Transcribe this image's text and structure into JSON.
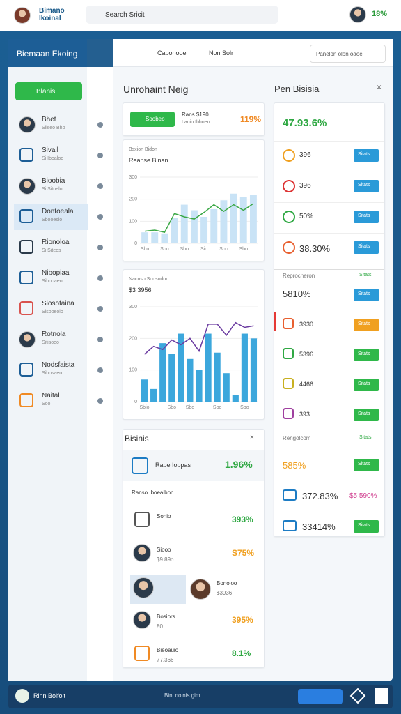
{
  "header": {
    "brand": "Bimano Ikoinal",
    "search": "Search Sricit",
    "stat": "18%"
  },
  "panel": {
    "title": "Biemaan Ekoing",
    "tabs": [
      "Caponooe",
      "Non Solr"
    ],
    "dropdown": "Panelon olon oaoe"
  },
  "sidebar": {
    "button": "Blanis",
    "items": [
      {
        "name": "Bhet",
        "sub": "Sliseo Bho"
      },
      {
        "name": "Sivail",
        "sub": "Si Iboaloo"
      },
      {
        "name": "Bioobia",
        "sub": "Si Sitoelo"
      },
      {
        "name": "Dontoeala",
        "sub": "Sbooeslo"
      },
      {
        "name": "Rionoloa",
        "sub": "Si Siteos"
      },
      {
        "name": "Nibopiaa",
        "sub": "Sibooaeo"
      },
      {
        "name": "Siosofaina",
        "sub": "Sisooeolo"
      },
      {
        "name": "Rotnola",
        "sub": "Sitisoeo"
      },
      {
        "name": "Nodsfaista",
        "sub": "Sibosaeo"
      },
      {
        "name": "Naital",
        "sub": "Soo"
      }
    ]
  },
  "center": {
    "title": "Unrohaint Neig",
    "summary": {
      "button": "Soobeo",
      "line1": "Rans $190",
      "line2": "Lanio Ibhoen",
      "stat": "119%"
    },
    "bottom": {
      "title": "Bisinis",
      "head": "Rape Ioppas",
      "head_stat": "1.96%",
      "filter": "Ranso Iboeaibon",
      "rows": [
        {
          "label": "Sonio",
          "stat": "393%"
        },
        {
          "label": "Siooo",
          "sub": "$9 89o",
          "stat": "S75%"
        },
        {
          "label": "Bonoloo",
          "sub": "$3936"
        },
        {
          "label": "Bosiors",
          "sub": "80",
          "stat": "395%"
        },
        {
          "label": "Bieoauio",
          "sub": "77.366",
          "stat": "8.1%"
        }
      ]
    }
  },
  "chart_data": [
    {
      "type": "bar",
      "subtitle": "Bsxion Bidon",
      "title": "Reanse Binan",
      "categories": [
        "Sbo",
        null,
        "Sbo",
        null,
        "Sbo",
        null,
        "Sio",
        null,
        "Sbo",
        null,
        "Sbo",
        null
      ],
      "series": [
        {
          "type": "bar",
          "color": "#c9e3f6",
          "values": [
            50,
            50,
            45,
            115,
            175,
            150,
            120,
            155,
            195,
            225,
            210,
            220
          ]
        },
        {
          "type": "line",
          "color": "#3aa845",
          "values": [
            55,
            60,
            50,
            135,
            120,
            110,
            140,
            175,
            145,
            175,
            150,
            180
          ]
        }
      ],
      "ylim": [
        0,
        300
      ],
      "yticks": [
        0,
        100,
        200,
        300
      ]
    },
    {
      "type": "bar",
      "subtitle": "Nacnso Soosodon",
      "title": "$3 3956",
      "categories": [
        "Sbio",
        null,
        null,
        "Sbo",
        null,
        "Sbo",
        null,
        null,
        "Sbo",
        null,
        null,
        "Sbo",
        null
      ],
      "series": [
        {
          "type": "bar",
          "color": "#3ca7dc",
          "values": [
            70,
            40,
            185,
            150,
            215,
            135,
            100,
            215,
            155,
            90,
            20,
            215,
            200
          ]
        },
        {
          "type": "line",
          "color": "#6a3aa0",
          "values": [
            150,
            175,
            165,
            195,
            180,
            200,
            160,
            245,
            245,
            210,
            250,
            235,
            240
          ]
        }
      ],
      "ylim": [
        0,
        300
      ],
      "yticks": [
        0,
        100,
        200,
        300
      ]
    }
  ],
  "right": {
    "title": "Pen Bisisia",
    "top": "47.93.6%",
    "rows": [
      {
        "text": "396",
        "button": "Sitats"
      },
      {
        "text": "396",
        "button": "Sitats"
      },
      {
        "text": "50%",
        "button": "Sitats"
      },
      {
        "text": "38.30%",
        "button": "Sitats"
      }
    ],
    "s1": {
      "title": "Reprocheron",
      "tag": "Sitats",
      "main": "5810%",
      "button": "Sitats",
      "rows": [
        {
          "text": "3930",
          "button": "Sitats"
        },
        {
          "text": "5396",
          "button": "Sitats"
        },
        {
          "text": "4466",
          "button": "Sitats"
        },
        {
          "text": "393",
          "button": "Sitats"
        }
      ]
    },
    "s2": {
      "title": "Rengolcom",
      "tag": "Sitats",
      "rows": [
        {
          "text": "585%",
          "button": "Sitats"
        },
        {
          "text": "372.83%",
          "button": "$5 590%"
        },
        {
          "text": "33414%",
          "button": "Sitats"
        }
      ]
    }
  },
  "footer": {
    "brand": "Rinn Bolfoit",
    "search": "Bini noinis gim.."
  }
}
